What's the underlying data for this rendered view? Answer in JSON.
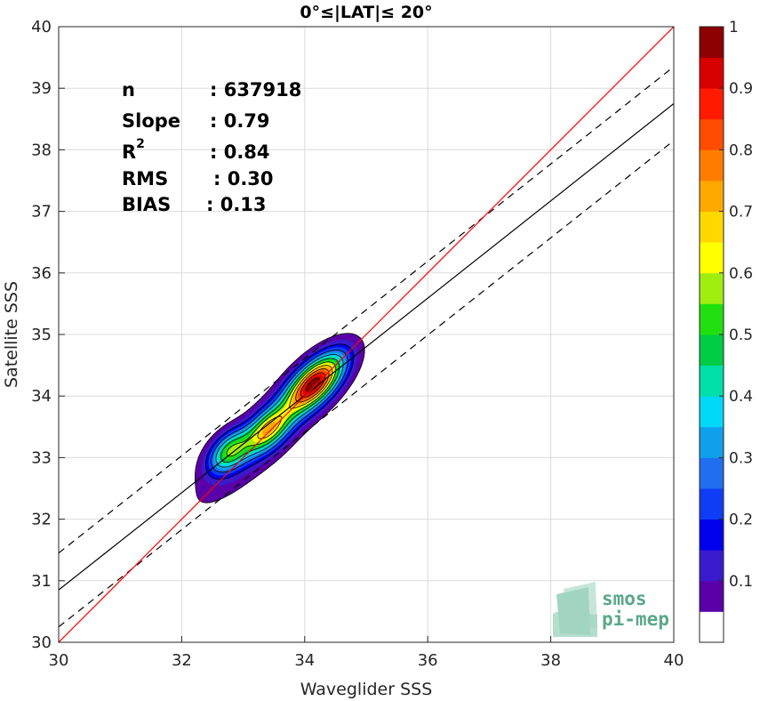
{
  "chart_data": {
    "type": "scatter",
    "title": "0°≤|LAT|≤ 20°",
    "xlabel": "Waveglider SSS",
    "ylabel": "Satellite SSS",
    "xlim": [
      30,
      40
    ],
    "ylim": [
      30,
      40
    ],
    "x_ticks": [
      "30",
      "32",
      "34",
      "36",
      "38",
      "40"
    ],
    "y_ticks": [
      "30",
      "31",
      "32",
      "33",
      "34",
      "35",
      "36",
      "37",
      "38",
      "39",
      "40"
    ],
    "grid": true,
    "plot_style": "filled density contours (normalized 0 to 1) with 1:1 line, regression line and ±2σ dashed lines",
    "stats": [
      {
        "label": "n",
        "value": ": 637918"
      },
      {
        "label": "Slope",
        "value": ": 0.79"
      },
      {
        "label": "R",
        "superscript": "2",
        "value": ": 0.84"
      },
      {
        "label": "RMS",
        "value": ": 0.30"
      },
      {
        "label": "BIAS",
        "value": ": 0.13"
      }
    ],
    "lines": {
      "identity": {
        "x": [
          30,
          40
        ],
        "y": [
          30,
          40
        ],
        "color": "#ff0000"
      },
      "regression": {
        "x": [
          30,
          40
        ],
        "y": [
          30.85,
          38.75
        ],
        "color": "#000000"
      },
      "upper_bound": {
        "x": [
          30,
          40
        ],
        "y": [
          31.45,
          39.35
        ],
        "color": "#000000",
        "dash": true
      },
      "lower_bound": {
        "x": [
          30,
          40
        ],
        "y": [
          30.25,
          38.15
        ],
        "color": "#000000",
        "dash": true
      }
    },
    "density_peaks": [
      {
        "x": 34.2,
        "y": 34.2,
        "level": 1.0
      },
      {
        "x": 33.4,
        "y": 33.45,
        "level": 0.75
      },
      {
        "x": 32.8,
        "y": 33.1,
        "level": 0.65
      }
    ],
    "colorbar": {
      "range": [
        0,
        1
      ],
      "tick_labels": [
        "0.1",
        "0.2",
        "0.3",
        "0.4",
        "0.5",
        "0.6",
        "0.7",
        "0.8",
        "0.9",
        "1"
      ],
      "tick_values": [
        0.1,
        0.2,
        0.3,
        0.4,
        0.5,
        0.6,
        0.7,
        0.8,
        0.9,
        1.0
      ],
      "colors": [
        "#ffffff",
        "#5a00a8",
        "#3a1acd",
        "#0000ee",
        "#0f3cf5",
        "#1f6ff0",
        "#0fa0ec",
        "#00d8f8",
        "#00e0a8",
        "#00cc44",
        "#20e010",
        "#a0ee10",
        "#ffff00",
        "#ffd800",
        "#ffa800",
        "#ff7c00",
        "#ff4c00",
        "#ff1a00",
        "#d80000",
        "#8c0000"
      ]
    }
  },
  "logo": {
    "line1": "smos",
    "line2": "pi-mep"
  }
}
